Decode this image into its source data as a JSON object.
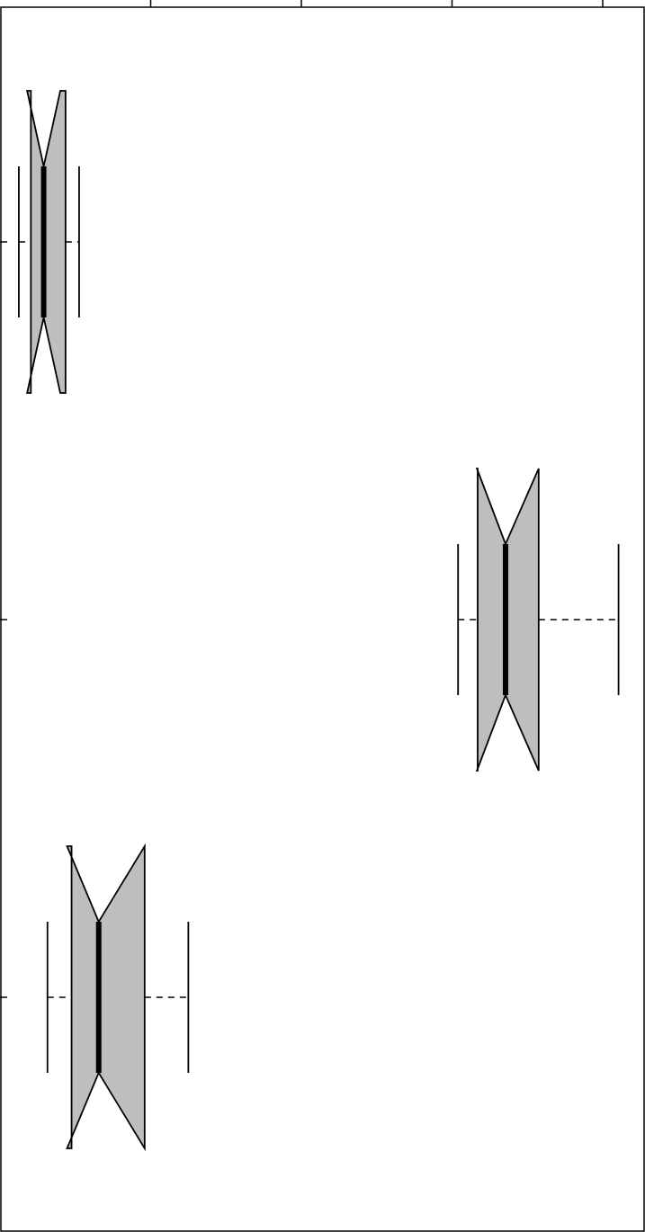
{
  "chart_data": {
    "type": "boxplot",
    "orientation": "horizontal",
    "notched": true,
    "title": "",
    "xlabel": "",
    "ylabel": "",
    "xlim": [
      0,
      100
    ],
    "x_ticks": [
      20,
      40,
      60,
      80
    ],
    "x_tick_labels": [
      "",
      "",
      "",
      ""
    ],
    "categories": [
      "",
      "",
      ""
    ],
    "box_fill": "#bebebe",
    "line_color": "#000000",
    "boxes": [
      {
        "whisker_low": 2.5,
        "q1": 4.1,
        "notch_low": 3.6,
        "median": 5.8,
        "notch_high": 8.0,
        "q3": 8.7,
        "whisker_high": 10.5
      },
      {
        "whisker_low": 60.8,
        "q1": 63.4,
        "notch_low": 63.3,
        "median": 67.1,
        "notch_high": 71.5,
        "q3": 71.5,
        "whisker_high": 82.1
      },
      {
        "whisker_low": 6.3,
        "q1": 9.5,
        "notch_low": 8.9,
        "median": 13.1,
        "notch_high": 19.2,
        "q3": 19.2,
        "whisker_high": 25.0
      }
    ]
  }
}
